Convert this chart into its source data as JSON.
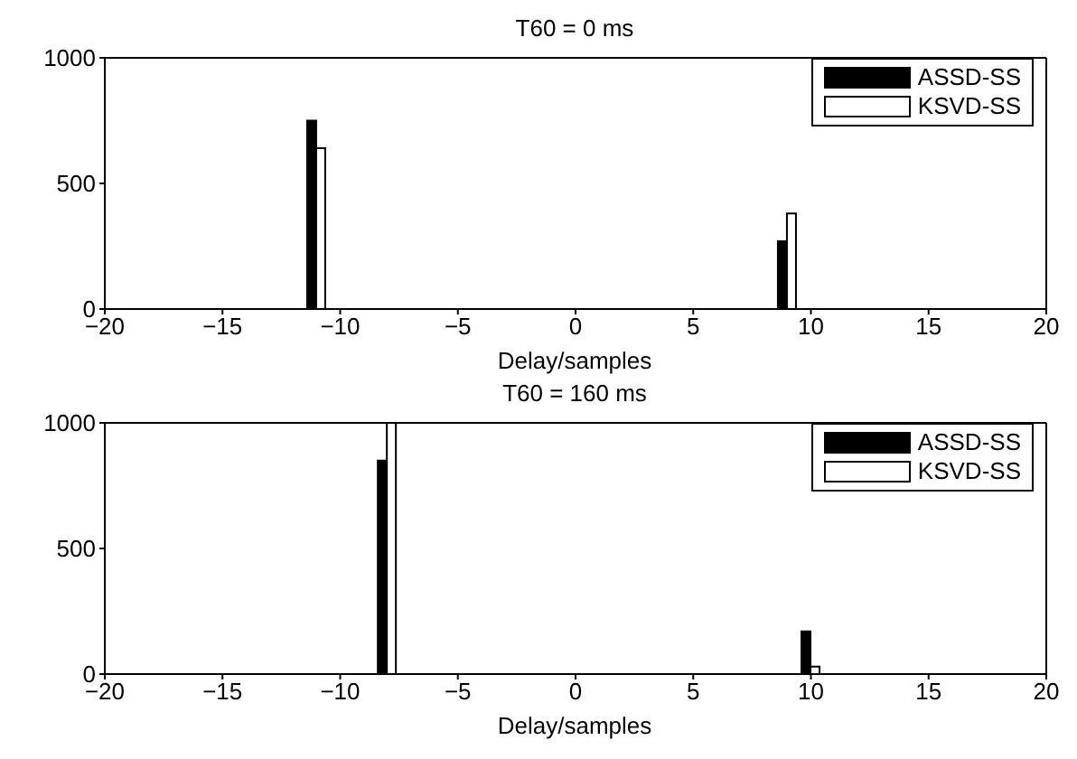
{
  "chart_data": [
    {
      "type": "bar",
      "title": "T60 = 0 ms",
      "xlabel": "Delay/samples",
      "x": [
        -11,
        9
      ],
      "series": [
        {
          "name": "ASSD-SS",
          "color": "#000000",
          "values": [
            750,
            270
          ]
        },
        {
          "name": "KSVD-SS",
          "color": "#ffffff",
          "values": [
            640,
            380
          ]
        }
      ],
      "xlim": [
        -20,
        20
      ],
      "xticks": [
        -20,
        -15,
        -10,
        -5,
        0,
        5,
        10,
        15,
        20
      ],
      "ylim": [
        0,
        1000
      ],
      "yticks": [
        0,
        500,
        1000
      ],
      "grid": false,
      "legend": "top right"
    },
    {
      "type": "bar",
      "title": "T60 = 160 ms",
      "xlabel": "Delay/samples",
      "x": [
        -8,
        10
      ],
      "series": [
        {
          "name": "ASSD-SS",
          "color": "#000000",
          "values": [
            850,
            170
          ]
        },
        {
          "name": "KSVD-SS",
          "color": "#ffffff",
          "values": [
            1000,
            30
          ]
        }
      ],
      "xlim": [
        -20,
        20
      ],
      "xticks": [
        -20,
        -15,
        -10,
        -5,
        0,
        5,
        10,
        15,
        20
      ],
      "ylim": [
        0,
        1000
      ],
      "yticks": [
        0,
        500,
        1000
      ],
      "grid": false,
      "legend": "top right"
    }
  ]
}
